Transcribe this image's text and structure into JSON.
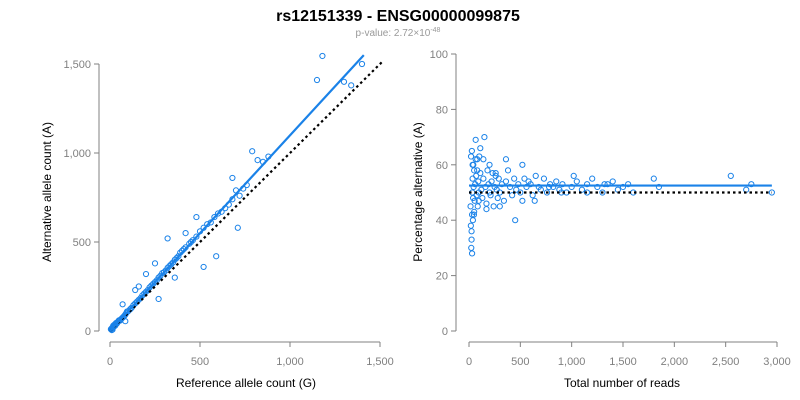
{
  "figure": {
    "title": "rs12151339 - ENSG00000099875",
    "subtitle_prefix": "p-value: 2.72×10",
    "subtitle_exponent": "-48"
  },
  "colors": {
    "points": "#1a82e8",
    "fit_line": "#1a82e8",
    "reference_line": "#000000",
    "axis": "#808080"
  },
  "chart_data": [
    {
      "type": "scatter",
      "xlabel": "Reference allele count (G)",
      "ylabel": "Alternative allele count (A)",
      "xlim": [
        0,
        1500
      ],
      "ylim": [
        0,
        1500
      ],
      "xticks": [
        0,
        500,
        1000,
        1500
      ],
      "xtick_labels": [
        "0",
        "500",
        "1,000",
        "1,500"
      ],
      "yticks": [
        0,
        500,
        1000,
        1500
      ],
      "ytick_labels": [
        "0",
        "500",
        "1,000",
        "1,500"
      ],
      "grid": false,
      "fit_line": {
        "x": [
          0,
          1410
        ],
        "y": [
          0,
          1550
        ]
      },
      "reference_line": {
        "x": [
          0,
          1520
        ],
        "y": [
          0,
          1520
        ],
        "style": "dotted"
      },
      "points": {
        "x": [
          5,
          8,
          10,
          12,
          15,
          18,
          20,
          22,
          25,
          28,
          30,
          10,
          14,
          18,
          24,
          30,
          34,
          38,
          42,
          46,
          50,
          55,
          60,
          65,
          70,
          75,
          80,
          85,
          90,
          95,
          100,
          110,
          115,
          120,
          130,
          140,
          150,
          160,
          170,
          180,
          190,
          200,
          210,
          220,
          230,
          240,
          250,
          260,
          270,
          280,
          290,
          300,
          310,
          320,
          330,
          340,
          350,
          360,
          370,
          380,
          390,
          400,
          410,
          420,
          440,
          460,
          480,
          500,
          520,
          540,
          560,
          580,
          600,
          620,
          640,
          660,
          680,
          700,
          720,
          740,
          760,
          790,
          820,
          850,
          880,
          1150,
          1180,
          1300,
          1340,
          1400,
          320,
          250,
          480,
          420,
          160,
          140,
          680,
          710,
          520,
          590,
          70,
          85,
          200,
          270,
          360,
          450
        ],
        "y": [
          10,
          12,
          15,
          18,
          20,
          22,
          24,
          25,
          28,
          30,
          32,
          5,
          8,
          30,
          35,
          40,
          45,
          42,
          48,
          55,
          60,
          58,
          65,
          70,
          75,
          80,
          85,
          92,
          100,
          110,
          110,
          120,
          125,
          130,
          145,
          155,
          165,
          175,
          185,
          200,
          210,
          220,
          230,
          245,
          255,
          265,
          275,
          285,
          300,
          310,
          325,
          330,
          340,
          355,
          365,
          375,
          385,
          400,
          410,
          420,
          440,
          450,
          460,
          470,
          490,
          510,
          530,
          560,
          580,
          600,
          610,
          640,
          660,
          670,
          690,
          710,
          740,
          790,
          760,
          800,
          820,
          1010,
          960,
          950,
          980,
          1410,
          1545,
          1400,
          1380,
          1500,
          520,
          380,
          640,
          550,
          250,
          230,
          860,
          580,
          360,
          420,
          150,
          55,
          320,
          180,
          300,
          500
        ]
      }
    },
    {
      "type": "scatter",
      "xlabel": "Total number of reads",
      "ylabel": "Percentage alternative (A)",
      "xlim": [
        0,
        3000
      ],
      "ylim": [
        0,
        100
      ],
      "xticks": [
        0,
        500,
        1000,
        1500,
        2000,
        2500,
        3000
      ],
      "xtick_labels": [
        "0",
        "500",
        "1,000",
        "1,500",
        "2,000",
        "2,500",
        "3,000"
      ],
      "yticks": [
        0,
        20,
        40,
        60,
        80,
        100
      ],
      "ytick_labels": [
        "0",
        "20",
        "40",
        "60",
        "80",
        "100"
      ],
      "grid": false,
      "fit_line": {
        "x": [
          0,
          2950
        ],
        "y": [
          52.5,
          52.5
        ]
      },
      "reference_line": {
        "x": [
          0,
          2950
        ],
        "y": [
          50,
          50
        ],
        "style": "dotted"
      },
      "points": {
        "x": [
          15,
          18,
          20,
          22,
          25,
          28,
          30,
          32,
          35,
          38,
          40,
          42,
          45,
          48,
          50,
          55,
          60,
          65,
          70,
          75,
          80,
          85,
          90,
          95,
          100,
          110,
          120,
          130,
          140,
          150,
          160,
          170,
          180,
          190,
          200,
          210,
          220,
          230,
          240,
          250,
          260,
          270,
          280,
          290,
          300,
          320,
          340,
          360,
          380,
          400,
          420,
          440,
          460,
          480,
          500,
          520,
          540,
          560,
          580,
          600,
          620,
          650,
          680,
          700,
          730,
          760,
          790,
          820,
          850,
          880,
          910,
          950,
          1000,
          1050,
          1100,
          1150,
          1200,
          1250,
          1300,
          1350,
          1400,
          1450,
          1500,
          1550,
          1600,
          1800,
          1850,
          2550,
          2700,
          2750,
          2950,
          25,
          30,
          35,
          50,
          65,
          80,
          95,
          110,
          140,
          170,
          200,
          260,
          300,
          360,
          450,
          520,
          640,
          780,
          900,
          1020,
          1150,
          1320
        ],
        "y": [
          45,
          38,
          63,
          30,
          33,
          65,
          28,
          50,
          55,
          40,
          48,
          60,
          52,
          42,
          58,
          47,
          53,
          69,
          56,
          49,
          62,
          45,
          54,
          50,
          63,
          57,
          51,
          48,
          55,
          70,
          52,
          46,
          58,
          53,
          50,
          49,
          54,
          57,
          45,
          52,
          56,
          51,
          48,
          55,
          50,
          53,
          47,
          54,
          58,
          52,
          49,
          55,
          51,
          53,
          50,
          47,
          55,
          52,
          54,
          53,
          49,
          56,
          52,
          51,
          55,
          50,
          53,
          52,
          54,
          51,
          53,
          50,
          52,
          54,
          51,
          53,
          55,
          52,
          50,
          53,
          54,
          51,
          52,
          53,
          50,
          55,
          52,
          56,
          51,
          53,
          50,
          36,
          42,
          60,
          43,
          62,
          58,
          47,
          66,
          62,
          44,
          60,
          57,
          45,
          62,
          40,
          60,
          47,
          52,
          50,
          56,
          50,
          53
        ]
      }
    }
  ]
}
